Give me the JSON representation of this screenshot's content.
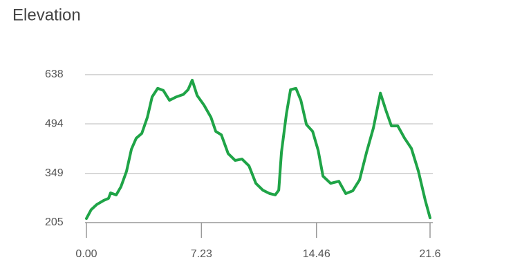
{
  "chart_data": {
    "type": "line",
    "title": "Elevation",
    "x": [
      0,
      0.3,
      0.65,
      1.09,
      1.39,
      1.52,
      1.87,
      2.17,
      2.52,
      2.83,
      3.13,
      3.48,
      3.83,
      4.13,
      4.48,
      4.83,
      5.22,
      5.65,
      6.09,
      6.39,
      6.65,
      6.96,
      7.39,
      7.83,
      8.13,
      8.48,
      8.91,
      9.35,
      9.78,
      10.22,
      10.65,
      11.09,
      11.52,
      11.87,
      12.09,
      12.26,
      12.57,
      12.83,
      13.17,
      13.48,
      13.83,
      14.22,
      14.57,
      14.87,
      15.35,
      15.87,
      16.3,
      16.74,
      17.17,
      17.61,
      18.04,
      18.48,
      18.83,
      19.17,
      19.57,
      20.0,
      20.43,
      20.87,
      21.3,
      21.6
    ],
    "series": [
      {
        "color": "#1fa447",
        "values": [
          217,
          243,
          258,
          270,
          276,
          292,
          286,
          310,
          355,
          420,
          452,
          466,
          513,
          573,
          598,
          592,
          563,
          573,
          580,
          594,
          622,
          577,
          549,
          513,
          472,
          462,
          407,
          387,
          391,
          371,
          320,
          300,
          290,
          286,
          300,
          411,
          523,
          594,
          598,
          563,
          492,
          472,
          416,
          341,
          320,
          326,
          290,
          298,
          330,
          411,
          482,
          584,
          533,
          488,
          488,
          452,
          422,
          355,
          270,
          219
        ]
      }
    ],
    "xlim": [
      0,
      21.6
    ],
    "xticks": [
      {
        "value": 0,
        "label": "0.00"
      },
      7.23,
      14.46,
      21.6
    ],
    "ylim": [
      205,
      638
    ],
    "yticks": [
      638,
      494,
      349,
      205
    ],
    "grid": true
  }
}
